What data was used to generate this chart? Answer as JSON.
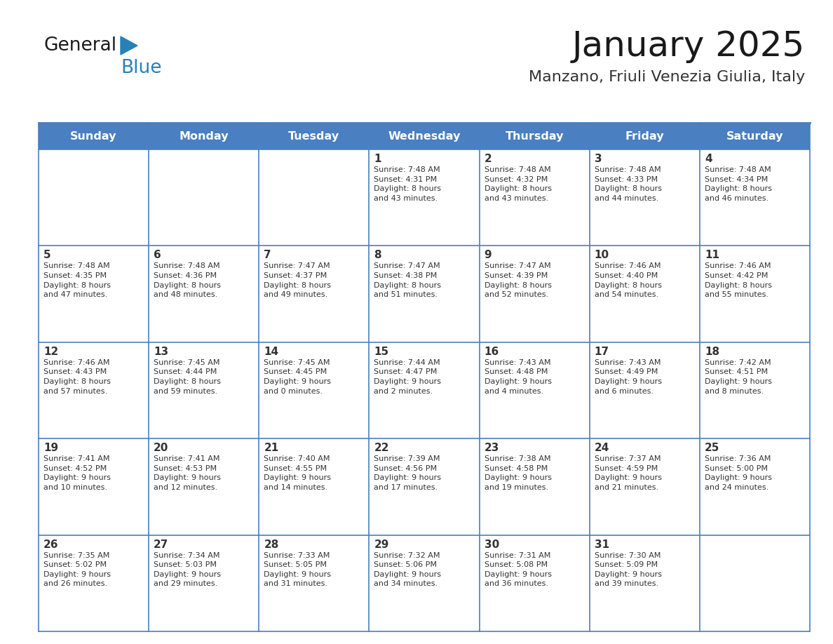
{
  "title": "January 2025",
  "subtitle": "Manzano, Friuli Venezia Giulia, Italy",
  "days_of_week": [
    "Sunday",
    "Monday",
    "Tuesday",
    "Wednesday",
    "Thursday",
    "Friday",
    "Saturday"
  ],
  "header_bg": "#4a7fc1",
  "header_text": "#FFFFFF",
  "cell_bg": "#FFFFFF",
  "cell_text": "#333333",
  "grid_line_color": "#4a7fc1",
  "title_color": "#1a1a1a",
  "subtitle_color": "#333333",
  "calendar": [
    [
      null,
      null,
      null,
      {
        "day": 1,
        "sunrise": "7:48 AM",
        "sunset": "4:31 PM",
        "daylight": "8 hours and 43 minutes."
      },
      {
        "day": 2,
        "sunrise": "7:48 AM",
        "sunset": "4:32 PM",
        "daylight": "8 hours and 43 minutes."
      },
      {
        "day": 3,
        "sunrise": "7:48 AM",
        "sunset": "4:33 PM",
        "daylight": "8 hours and 44 minutes."
      },
      {
        "day": 4,
        "sunrise": "7:48 AM",
        "sunset": "4:34 PM",
        "daylight": "8 hours and 46 minutes."
      }
    ],
    [
      {
        "day": 5,
        "sunrise": "7:48 AM",
        "sunset": "4:35 PM",
        "daylight": "8 hours and 47 minutes."
      },
      {
        "day": 6,
        "sunrise": "7:48 AM",
        "sunset": "4:36 PM",
        "daylight": "8 hours and 48 minutes."
      },
      {
        "day": 7,
        "sunrise": "7:47 AM",
        "sunset": "4:37 PM",
        "daylight": "8 hours and 49 minutes."
      },
      {
        "day": 8,
        "sunrise": "7:47 AM",
        "sunset": "4:38 PM",
        "daylight": "8 hours and 51 minutes."
      },
      {
        "day": 9,
        "sunrise": "7:47 AM",
        "sunset": "4:39 PM",
        "daylight": "8 hours and 52 minutes."
      },
      {
        "day": 10,
        "sunrise": "7:46 AM",
        "sunset": "4:40 PM",
        "daylight": "8 hours and 54 minutes."
      },
      {
        "day": 11,
        "sunrise": "7:46 AM",
        "sunset": "4:42 PM",
        "daylight": "8 hours and 55 minutes."
      }
    ],
    [
      {
        "day": 12,
        "sunrise": "7:46 AM",
        "sunset": "4:43 PM",
        "daylight": "8 hours and 57 minutes."
      },
      {
        "day": 13,
        "sunrise": "7:45 AM",
        "sunset": "4:44 PM",
        "daylight": "8 hours and 59 minutes."
      },
      {
        "day": 14,
        "sunrise": "7:45 AM",
        "sunset": "4:45 PM",
        "daylight": "9 hours and 0 minutes."
      },
      {
        "day": 15,
        "sunrise": "7:44 AM",
        "sunset": "4:47 PM",
        "daylight": "9 hours and 2 minutes."
      },
      {
        "day": 16,
        "sunrise": "7:43 AM",
        "sunset": "4:48 PM",
        "daylight": "9 hours and 4 minutes."
      },
      {
        "day": 17,
        "sunrise": "7:43 AM",
        "sunset": "4:49 PM",
        "daylight": "9 hours and 6 minutes."
      },
      {
        "day": 18,
        "sunrise": "7:42 AM",
        "sunset": "4:51 PM",
        "daylight": "9 hours and 8 minutes."
      }
    ],
    [
      {
        "day": 19,
        "sunrise": "7:41 AM",
        "sunset": "4:52 PM",
        "daylight": "9 hours and 10 minutes."
      },
      {
        "day": 20,
        "sunrise": "7:41 AM",
        "sunset": "4:53 PM",
        "daylight": "9 hours and 12 minutes."
      },
      {
        "day": 21,
        "sunrise": "7:40 AM",
        "sunset": "4:55 PM",
        "daylight": "9 hours and 14 minutes."
      },
      {
        "day": 22,
        "sunrise": "7:39 AM",
        "sunset": "4:56 PM",
        "daylight": "9 hours and 17 minutes."
      },
      {
        "day": 23,
        "sunrise": "7:38 AM",
        "sunset": "4:58 PM",
        "daylight": "9 hours and 19 minutes."
      },
      {
        "day": 24,
        "sunrise": "7:37 AM",
        "sunset": "4:59 PM",
        "daylight": "9 hours and 21 minutes."
      },
      {
        "day": 25,
        "sunrise": "7:36 AM",
        "sunset": "5:00 PM",
        "daylight": "9 hours and 24 minutes."
      }
    ],
    [
      {
        "day": 26,
        "sunrise": "7:35 AM",
        "sunset": "5:02 PM",
        "daylight": "9 hours and 26 minutes."
      },
      {
        "day": 27,
        "sunrise": "7:34 AM",
        "sunset": "5:03 PM",
        "daylight": "9 hours and 29 minutes."
      },
      {
        "day": 28,
        "sunrise": "7:33 AM",
        "sunset": "5:05 PM",
        "daylight": "9 hours and 31 minutes."
      },
      {
        "day": 29,
        "sunrise": "7:32 AM",
        "sunset": "5:06 PM",
        "daylight": "9 hours and 34 minutes."
      },
      {
        "day": 30,
        "sunrise": "7:31 AM",
        "sunset": "5:08 PM",
        "daylight": "9 hours and 36 minutes."
      },
      {
        "day": 31,
        "sunrise": "7:30 AM",
        "sunset": "5:09 PM",
        "daylight": "9 hours and 39 minutes."
      },
      null
    ]
  ],
  "logo_color1": "#1a1a1a",
  "logo_color2": "#2980B9",
  "logo_triangle_color": "#2980B9"
}
